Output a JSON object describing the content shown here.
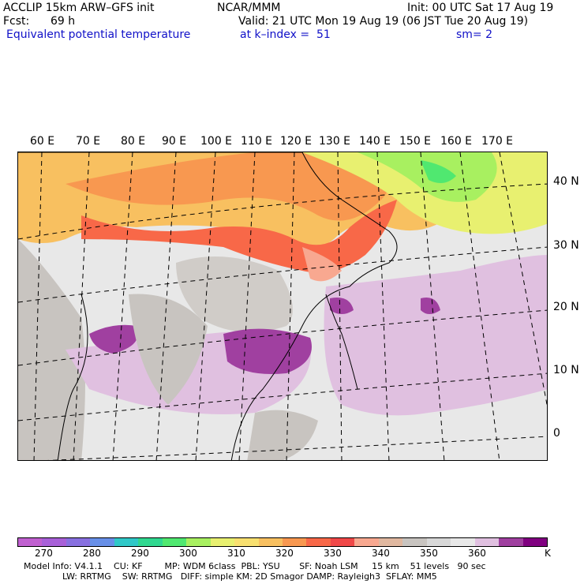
{
  "header": {
    "line1_left": "ACCLIP 15km ARW–GFS init",
    "line1_mid": "NCAR/MMM",
    "line1_right": "Init: 00 UTC Sat 17 Aug 19",
    "fcst_label": "Fcst:",
    "fcst_value": "69 h",
    "valid": "Valid: 21 UTC Mon 19 Aug 19 (06 JST Tue 20 Aug 19)",
    "field": "Equivalent potential temperature",
    "level": "at k–index =  51",
    "smooth": "sm= 2"
  },
  "map": {
    "lon_labels": [
      "60 E",
      "70 E",
      "80 E",
      "90 E",
      "100 E",
      "110 E",
      "120 E",
      "130 E",
      "140 E",
      "150 E",
      "160 E",
      "170 E"
    ],
    "lat_labels": [
      "40 N",
      "30 N",
      "20 N",
      "10 N",
      "0"
    ]
  },
  "colorbar": {
    "colors": [
      "#c060d0",
      "#a860d8",
      "#8870e0",
      "#6890e8",
      "#30c8c8",
      "#30d890",
      "#50e870",
      "#a8f060",
      "#e8f070",
      "#f8e070",
      "#f8c060",
      "#f89850",
      "#f86848",
      "#f04848",
      "#f8a890",
      "#e0b8a0",
      "#c8c4c0",
      "#d8d8d8",
      "#e8e8e8",
      "#e0c0e0",
      "#a040a0",
      "#800080"
    ],
    "ticks": [
      "270",
      "280",
      "290",
      "300",
      "310",
      "320",
      "330",
      "340",
      "350",
      "360"
    ],
    "unit": "K"
  },
  "info": {
    "line1": "Model Info: V4.1.1    CU: KF        MP: WDM 6class  PBL: YSU       SF: Noah LSM     15 km    51 levels   90 sec",
    "line2": "              LW: RRTMG    SW: RRTMG   DIFF: simple KM: 2D Smagor DAMP: Rayleigh3  SFLAY: MM5"
  }
}
